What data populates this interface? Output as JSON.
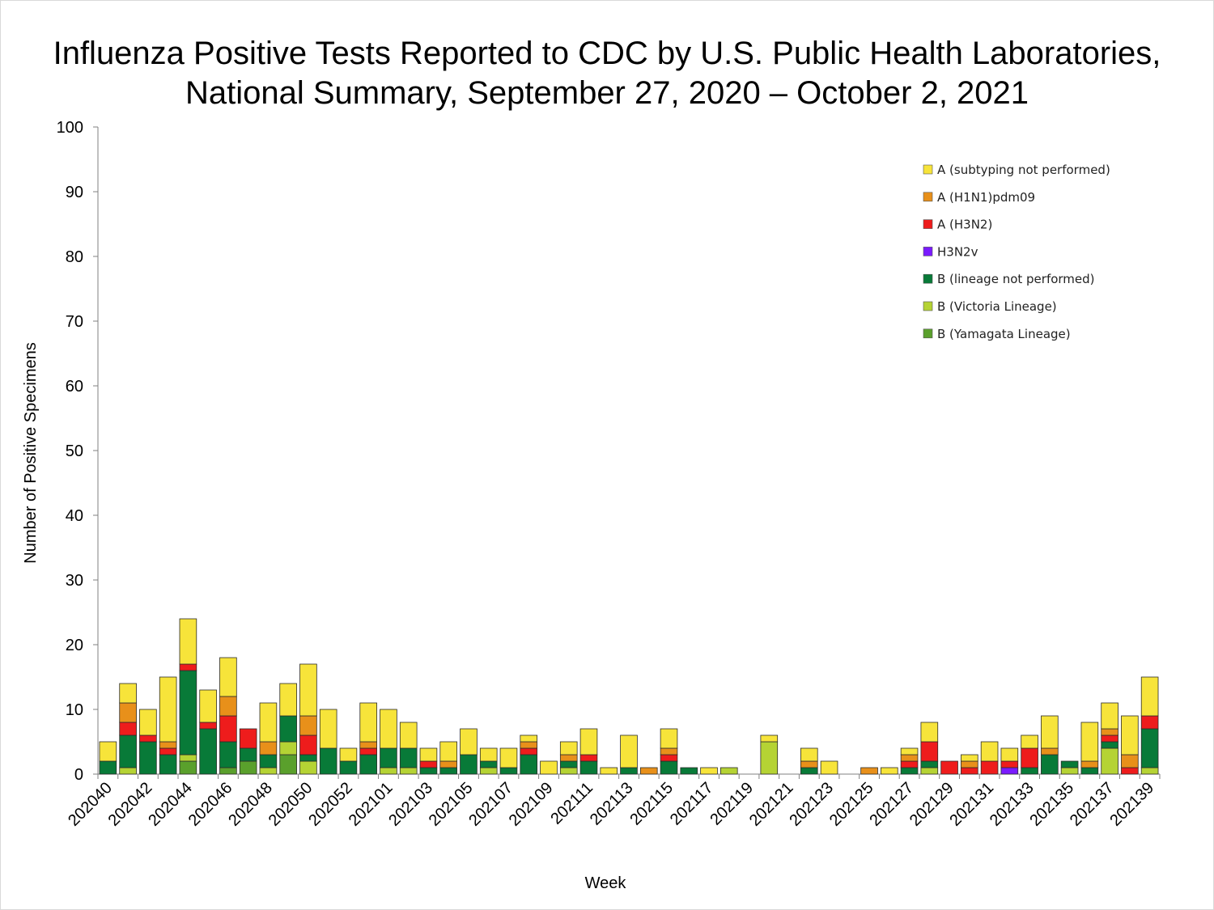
{
  "chart_data": {
    "type": "bar",
    "stacked": true,
    "title_lines": [
      "Influenza Positive Tests Reported to CDC by U.S. Public Health Laboratories,",
      "National Summary, September 27, 2020 – October 2, 2021"
    ],
    "xlabel": "Week",
    "ylabel": "Number of Positive Specimens",
    "ylim": [
      0,
      100
    ],
    "yticks": [
      0,
      10,
      20,
      30,
      40,
      50,
      60,
      70,
      80,
      90,
      100
    ],
    "legend_position": "top-right",
    "categories": [
      "202040",
      "202041",
      "202042",
      "202043",
      "202044",
      "202045",
      "202046",
      "202047",
      "202048",
      "202049",
      "202050",
      "202051",
      "202052",
      "202053",
      "202101",
      "202102",
      "202103",
      "202104",
      "202105",
      "202106",
      "202107",
      "202108",
      "202109",
      "202110",
      "202111",
      "202112",
      "202113",
      "202114",
      "202115",
      "202116",
      "202117",
      "202118",
      "202119",
      "202120",
      "202121",
      "202122",
      "202123",
      "202124",
      "202125",
      "202126",
      "202127",
      "202128",
      "202129",
      "202130",
      "202131",
      "202132",
      "202133",
      "202134",
      "202135",
      "202136",
      "202137",
      "202138",
      "202139"
    ],
    "tick_labels": [
      "202040",
      "202042",
      "202044",
      "202046",
      "202048",
      "202050",
      "202052",
      "202101",
      "202103",
      "202105",
      "202107",
      "202109",
      "202111",
      "202113",
      "202115",
      "202117",
      "202119",
      "202121",
      "202123",
      "202125",
      "202127",
      "202129",
      "202131",
      "202133",
      "202135",
      "202137",
      "202139"
    ],
    "series": [
      {
        "name": "B (Yamagata Lineage)",
        "color": "#5aa02c",
        "values": [
          0,
          0,
          0,
          0,
          2,
          0,
          1,
          2,
          0,
          3,
          0,
          0,
          0,
          0,
          0,
          0,
          0,
          0,
          0,
          0,
          0,
          0,
          0,
          0,
          0,
          0,
          0,
          0,
          0,
          0,
          0,
          0,
          0,
          0,
          0,
          0,
          0,
          0,
          0,
          0,
          0,
          0,
          0,
          0,
          0,
          0,
          0,
          0,
          0,
          0,
          0,
          0,
          0
        ]
      },
      {
        "name": "B (Victoria Lineage)",
        "color": "#b5d334",
        "values": [
          0,
          1,
          0,
          0,
          1,
          0,
          0,
          0,
          1,
          2,
          2,
          0,
          0,
          0,
          1,
          1,
          0,
          0,
          0,
          1,
          0,
          0,
          0,
          1,
          0,
          0,
          0,
          0,
          0,
          0,
          0,
          1,
          0,
          5,
          0,
          0,
          0,
          0,
          0,
          0,
          0,
          1,
          0,
          0,
          0,
          0,
          0,
          0,
          1,
          0,
          4,
          0,
          1
        ]
      },
      {
        "name": "B (lineage not performed)",
        "color": "#087a38",
        "values": [
          2,
          5,
          5,
          3,
          13,
          7,
          4,
          2,
          2,
          4,
          1,
          4,
          2,
          3,
          3,
          3,
          1,
          1,
          3,
          1,
          1,
          3,
          0,
          1,
          2,
          0,
          1,
          0,
          2,
          1,
          0,
          0,
          0,
          0,
          0,
          1,
          0,
          0,
          0,
          0,
          1,
          1,
          0,
          0,
          0,
          0,
          1,
          3,
          1,
          1,
          1,
          0,
          6
        ]
      },
      {
        "name": "H3N2v",
        "color": "#7a1aff",
        "values": [
          0,
          0,
          0,
          0,
          0,
          0,
          0,
          0,
          0,
          0,
          0,
          0,
          0,
          0,
          0,
          0,
          0,
          0,
          0,
          0,
          0,
          0,
          0,
          0,
          0,
          0,
          0,
          0,
          0,
          0,
          0,
          0,
          0,
          0,
          0,
          0,
          0,
          0,
          0,
          0,
          0,
          0,
          0,
          0,
          0,
          1,
          0,
          0,
          0,
          0,
          0,
          0,
          0
        ]
      },
      {
        "name": "A (H3N2)",
        "color": "#ee1c1c",
        "values": [
          0,
          2,
          1,
          1,
          1,
          1,
          4,
          3,
          0,
          0,
          3,
          0,
          0,
          1,
          0,
          0,
          1,
          0,
          0,
          0,
          0,
          1,
          0,
          0,
          1,
          0,
          0,
          0,
          1,
          0,
          0,
          0,
          0,
          0,
          0,
          0,
          0,
          0,
          0,
          0,
          1,
          3,
          2,
          1,
          2,
          1,
          3,
          0,
          0,
          0,
          1,
          1,
          2
        ]
      },
      {
        "name": "A (H1N1)pdm09",
        "color": "#e8901a",
        "values": [
          0,
          3,
          0,
          1,
          0,
          0,
          3,
          0,
          2,
          0,
          3,
          0,
          0,
          1,
          0,
          0,
          0,
          1,
          0,
          0,
          0,
          1,
          0,
          1,
          0,
          0,
          0,
          1,
          1,
          0,
          0,
          0,
          0,
          0,
          0,
          1,
          0,
          0,
          1,
          0,
          1,
          0,
          0,
          1,
          0,
          0,
          0,
          1,
          0,
          1,
          1,
          2,
          0
        ]
      },
      {
        "name": "A (subtyping not performed)",
        "color": "#f7e43a",
        "values": [
          3,
          3,
          4,
          10,
          7,
          5,
          6,
          0,
          6,
          5,
          8,
          6,
          2,
          6,
          6,
          4,
          2,
          3,
          4,
          2,
          3,
          1,
          2,
          2,
          4,
          1,
          5,
          0,
          3,
          0,
          1,
          0,
          0,
          1,
          0,
          2,
          2,
          0,
          0,
          1,
          1,
          3,
          0,
          1,
          3,
          2,
          2,
          5,
          0,
          6,
          4,
          6,
          6
        ]
      }
    ],
    "legend_order": [
      "A (subtyping not performed)",
      "A (H1N1)pdm09",
      "A (H3N2)",
      "H3N2v",
      "B (lineage not performed)",
      "B (Victoria Lineage)",
      "B (Yamagata Lineage)"
    ]
  }
}
